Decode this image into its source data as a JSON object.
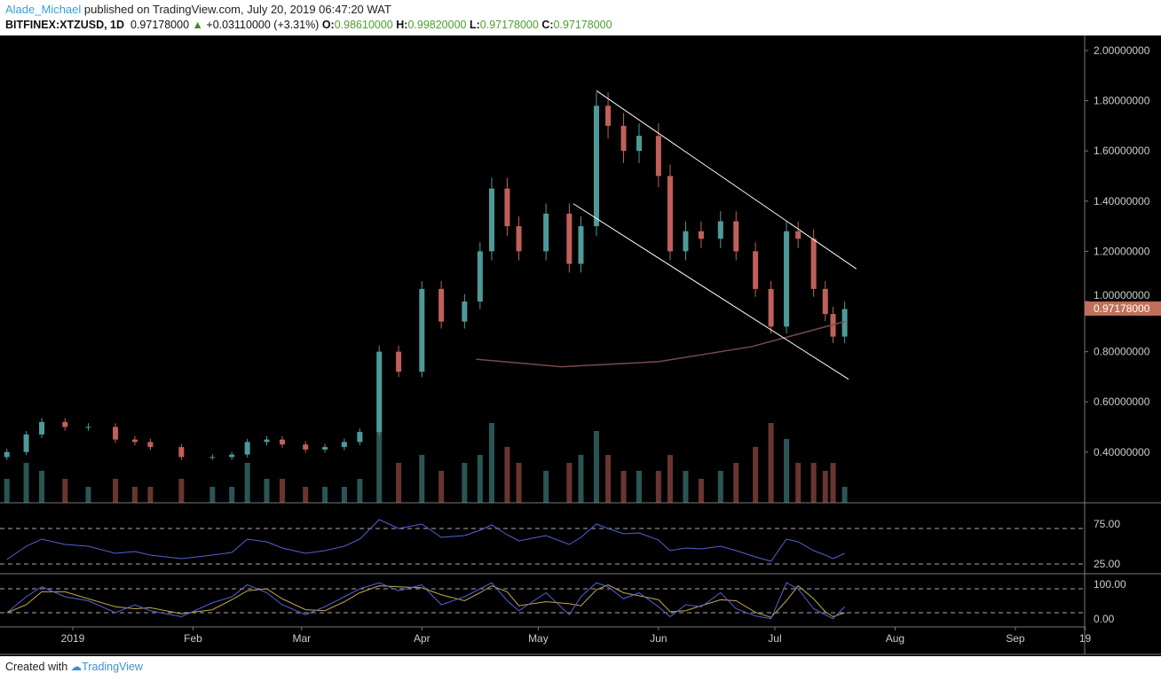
{
  "header": {
    "user": "Alade_Michael",
    "published": "published on TradingView.com, July 20, 2019 06:47:20 WAT",
    "symbol": "BITFINEX:XTZUSD, 1D",
    "last": "0.97178000",
    "change": "+0.03110000 (+3.31%)",
    "o_label": "O:",
    "o": "0.98610000",
    "h_label": "H:",
    "h": "0.99820000",
    "l_label": "L:",
    "l": "0.97178000",
    "c_label": "C:",
    "c": "0.97178000"
  },
  "footer": {
    "created_with": "Created with",
    "brand": "TradingView"
  },
  "colors": {
    "up": "#4e9a9a",
    "down": "#c0605a",
    "rsi": "#5560d8",
    "stoch_k": "#5560d8",
    "stoch_d": "#c8a84a",
    "ma": "#7a4a48",
    "price_tag": "#c0705a",
    "channel": "#ffffff"
  },
  "chart_data": {
    "type": "candlestick",
    "price_axis": {
      "ticks": [
        "2.00000000",
        "1.80000000",
        "1.60000000",
        "1.40000000",
        "1.20000000",
        "1.00000000",
        "0.80000000",
        "0.60000000",
        "0.40000000"
      ],
      "range": [
        0.25,
        2.05
      ]
    },
    "last_price_label": "0.97178000",
    "time_axis": {
      "labels": [
        [
          "2019",
          "2019-01-01"
        ],
        [
          "Feb",
          "2019-02-01"
        ],
        [
          "Mar",
          "2019-03-01"
        ],
        [
          "Apr",
          "2019-04-01"
        ],
        [
          "May",
          "2019-05-01"
        ],
        [
          "Jun",
          "2019-06-01"
        ],
        [
          "Jul",
          "2019-07-01"
        ],
        [
          "Aug",
          "2019-08-01"
        ],
        [
          "Sep",
          "2019-09-01"
        ],
        [
          "19",
          "2019-09-19"
        ]
      ]
    },
    "series_fields": [
      "date",
      "close",
      "volume",
      "rsi",
      "stoch"
    ],
    "series": [
      [
        "2018-12-15",
        0.4,
        0.3,
        35,
        20
      ],
      [
        "2018-12-20",
        0.47,
        0.5,
        50,
        60
      ],
      [
        "2018-12-24",
        0.52,
        0.4,
        58,
        85
      ],
      [
        "2018-12-30",
        0.5,
        0.3,
        52,
        60
      ],
      [
        "2019-01-05",
        0.5,
        0.2,
        50,
        50
      ],
      [
        "2019-01-12",
        0.45,
        0.3,
        42,
        20
      ],
      [
        "2019-01-17",
        0.44,
        0.2,
        44,
        40
      ],
      [
        "2019-01-21",
        0.42,
        0.2,
        40,
        25
      ],
      [
        "2019-01-29",
        0.38,
        0.3,
        36,
        10
      ],
      [
        "2019-02-06",
        0.38,
        0.2,
        40,
        45
      ],
      [
        "2019-02-11",
        0.39,
        0.2,
        43,
        60
      ],
      [
        "2019-02-15",
        0.44,
        0.5,
        58,
        90
      ],
      [
        "2019-02-20",
        0.45,
        0.3,
        55,
        70
      ],
      [
        "2019-02-24",
        0.43,
        0.3,
        48,
        40
      ],
      [
        "2019-03-02",
        0.41,
        0.2,
        42,
        15
      ],
      [
        "2019-03-07",
        0.42,
        0.2,
        45,
        35
      ],
      [
        "2019-03-12",
        0.44,
        0.2,
        50,
        60
      ],
      [
        "2019-03-16",
        0.48,
        0.3,
        58,
        80
      ],
      [
        "2019-03-21",
        0.8,
        0.9,
        80,
        95
      ],
      [
        "2019-03-26",
        0.72,
        0.5,
        70,
        75
      ],
      [
        "2019-04-01",
        1.05,
        0.6,
        75,
        90
      ],
      [
        "2019-04-06",
        0.92,
        0.4,
        60,
        40
      ],
      [
        "2019-04-12",
        1.0,
        0.5,
        62,
        60
      ],
      [
        "2019-04-16",
        1.2,
        0.6,
        68,
        80
      ],
      [
        "2019-04-19",
        1.45,
        1.0,
        74,
        95
      ],
      [
        "2019-04-23",
        1.3,
        0.7,
        63,
        50
      ],
      [
        "2019-04-26",
        1.2,
        0.5,
        56,
        25
      ],
      [
        "2019-05-03",
        1.35,
        0.4,
        62,
        70
      ],
      [
        "2019-05-09",
        1.15,
        0.5,
        52,
        15
      ],
      [
        "2019-05-12",
        1.3,
        0.6,
        60,
        60
      ],
      [
        "2019-05-16",
        1.78,
        0.9,
        75,
        95
      ],
      [
        "2019-05-19",
        1.7,
        0.6,
        70,
        85
      ],
      [
        "2019-05-23",
        1.6,
        0.4,
        64,
        55
      ],
      [
        "2019-05-27",
        1.66,
        0.4,
        65,
        70
      ],
      [
        "2019-06-01",
        1.5,
        0.4,
        57,
        35
      ],
      [
        "2019-06-04",
        1.2,
        0.6,
        45,
        10
      ],
      [
        "2019-06-08",
        1.28,
        0.4,
        48,
        40
      ],
      [
        "2019-06-12",
        1.25,
        0.3,
        47,
        35
      ],
      [
        "2019-06-17",
        1.32,
        0.4,
        50,
        70
      ],
      [
        "2019-06-21",
        1.2,
        0.5,
        45,
        30
      ],
      [
        "2019-06-26",
        1.05,
        0.7,
        38,
        12
      ],
      [
        "2019-06-30",
        0.9,
        1.0,
        33,
        5
      ],
      [
        "2019-07-04",
        1.28,
        0.8,
        58,
        95
      ],
      [
        "2019-07-07",
        1.25,
        0.5,
        55,
        80
      ],
      [
        "2019-07-11",
        1.05,
        0.5,
        45,
        30
      ],
      [
        "2019-07-14",
        0.95,
        0.4,
        40,
        15
      ],
      [
        "2019-07-16",
        0.86,
        0.5,
        36,
        5
      ],
      [
        "2019-07-19",
        0.97,
        0.2,
        42,
        35
      ]
    ],
    "moving_average": [
      [
        "2019-04-15",
        0.77
      ],
      [
        "2019-05-07",
        0.74
      ],
      [
        "2019-06-01",
        0.76
      ],
      [
        "2019-06-25",
        0.82
      ],
      [
        "2019-07-19",
        0.92
      ]
    ],
    "channel": {
      "upper": [
        [
          "2019-05-16",
          1.84
        ],
        [
          "2019-07-22",
          1.13
        ]
      ],
      "lower": [
        [
          "2019-05-10",
          1.39
        ],
        [
          "2019-07-20",
          0.69
        ]
      ]
    },
    "rsi": {
      "ticks": [
        "75.00",
        "25.00"
      ],
      "levels": [
        70,
        30
      ]
    },
    "stoch": {
      "ticks": [
        "100.00",
        "0.00"
      ],
      "levels": [
        80,
        20
      ]
    }
  }
}
